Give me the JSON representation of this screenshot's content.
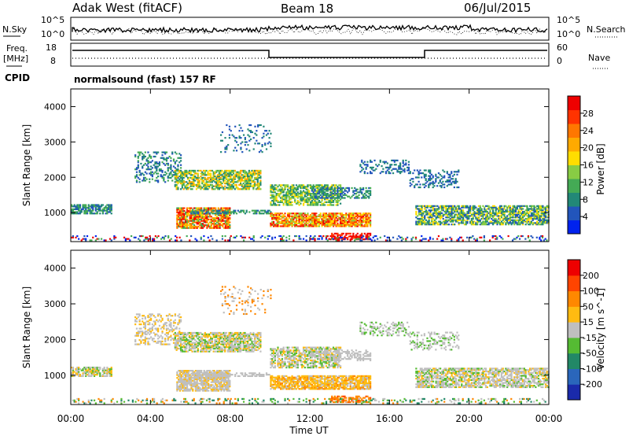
{
  "header": {
    "title": "Adak West (fitACF)",
    "beam": "Beam 18",
    "date": "06/Jul/2015"
  },
  "noise_panel": {
    "left_label": "N.Sky",
    "right_label": "N.Search",
    "left_ticks": [
      "10^5",
      "10^0"
    ],
    "right_ticks": [
      "10^5",
      "10^0"
    ]
  },
  "freq_panel": {
    "left_label_1": "Freq.",
    "left_label_2": "[MHz]",
    "right_label": "Nave",
    "left_ticks": [
      "18",
      "8"
    ],
    "right_ticks": [
      "60",
      "0"
    ]
  },
  "cpid": {
    "label": "CPID",
    "value": "normalsound (fast) 157 RF"
  },
  "chart_data": [
    {
      "type": "heatmap",
      "name": "power",
      "ylabel": "Slant Range [km]",
      "yticks": [
        "1000",
        "2000",
        "3000",
        "4000"
      ],
      "ylim": [
        180,
        4500
      ],
      "xlim": [
        0,
        24
      ],
      "colorbar": {
        "label": "Power [dB]",
        "ticks": [
          "4",
          "8",
          "12",
          "16",
          "20",
          "24",
          "28"
        ],
        "colors": [
          "#0022ee",
          "#2255bb",
          "#228877",
          "#44aa55",
          "#88cc44",
          "#ffdd00",
          "#ffaa00",
          "#ff7700",
          "#ff3300",
          "#ee0000"
        ]
      }
    },
    {
      "type": "heatmap",
      "name": "velocity",
      "ylabel": "Slant Range [km]",
      "yticks": [
        "1000",
        "2000",
        "3000",
        "4000"
      ],
      "ylim": [
        180,
        4500
      ],
      "xlim": [
        0,
        24
      ],
      "colorbar": {
        "label": "Velocity [m s^-1]",
        "ticks": [
          "200",
          "100",
          "50",
          "15",
          "-15",
          "-50",
          "-100",
          "-200"
        ],
        "colors": [
          "#1a2aaa",
          "#2a66bb",
          "#228866",
          "#55bb33",
          "#bfbfbf",
          "#ffbb11",
          "#ff8800",
          "#ff4400",
          "#ee0000"
        ]
      }
    }
  ],
  "time_axis": {
    "label": "Time UT",
    "ticks": [
      "00:00",
      "04:00",
      "08:00",
      "12:00",
      "16:00",
      "20:00",
      "00:00"
    ]
  }
}
